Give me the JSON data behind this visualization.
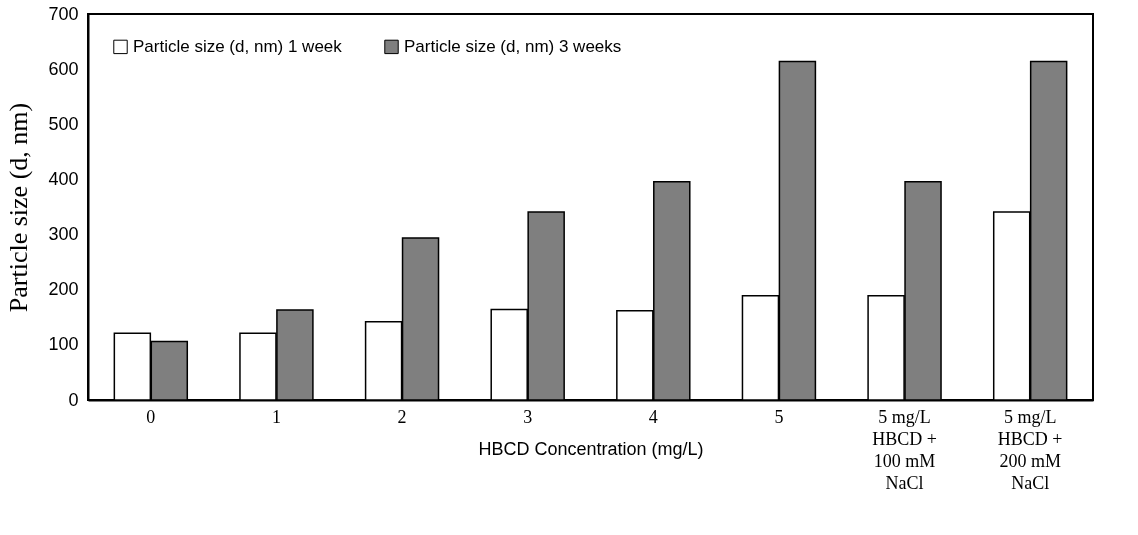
{
  "chart_data": {
    "type": "bar",
    "xlabel": "HBCD Concentration (mg/L)",
    "ylabel": "Particle size (d, nm)",
    "categories": [
      "0",
      "1",
      "2",
      "3",
      "4",
      "5",
      "5 mg/L\nHBCD +\n100  mM\nNaCl",
      "5 mg/L\nHBCD +\n200  mM\nNaCl"
    ],
    "series": [
      {
        "name": "Particle size (d, nm) 1 week",
        "color": "#ffffff",
        "values": [
          121,
          121,
          142,
          164,
          162,
          189,
          189,
          341
        ]
      },
      {
        "name": "Particle size (d, nm) 3 weeks",
        "color": "#7f7f7f",
        "values": [
          106,
          163,
          294,
          341,
          396,
          614,
          396,
          614
        ]
      }
    ],
    "ylim": [
      0,
      700
    ],
    "yticks": [
      0,
      100,
      200,
      300,
      400,
      500,
      600,
      700
    ],
    "grid": false,
    "legend": "top left"
  }
}
